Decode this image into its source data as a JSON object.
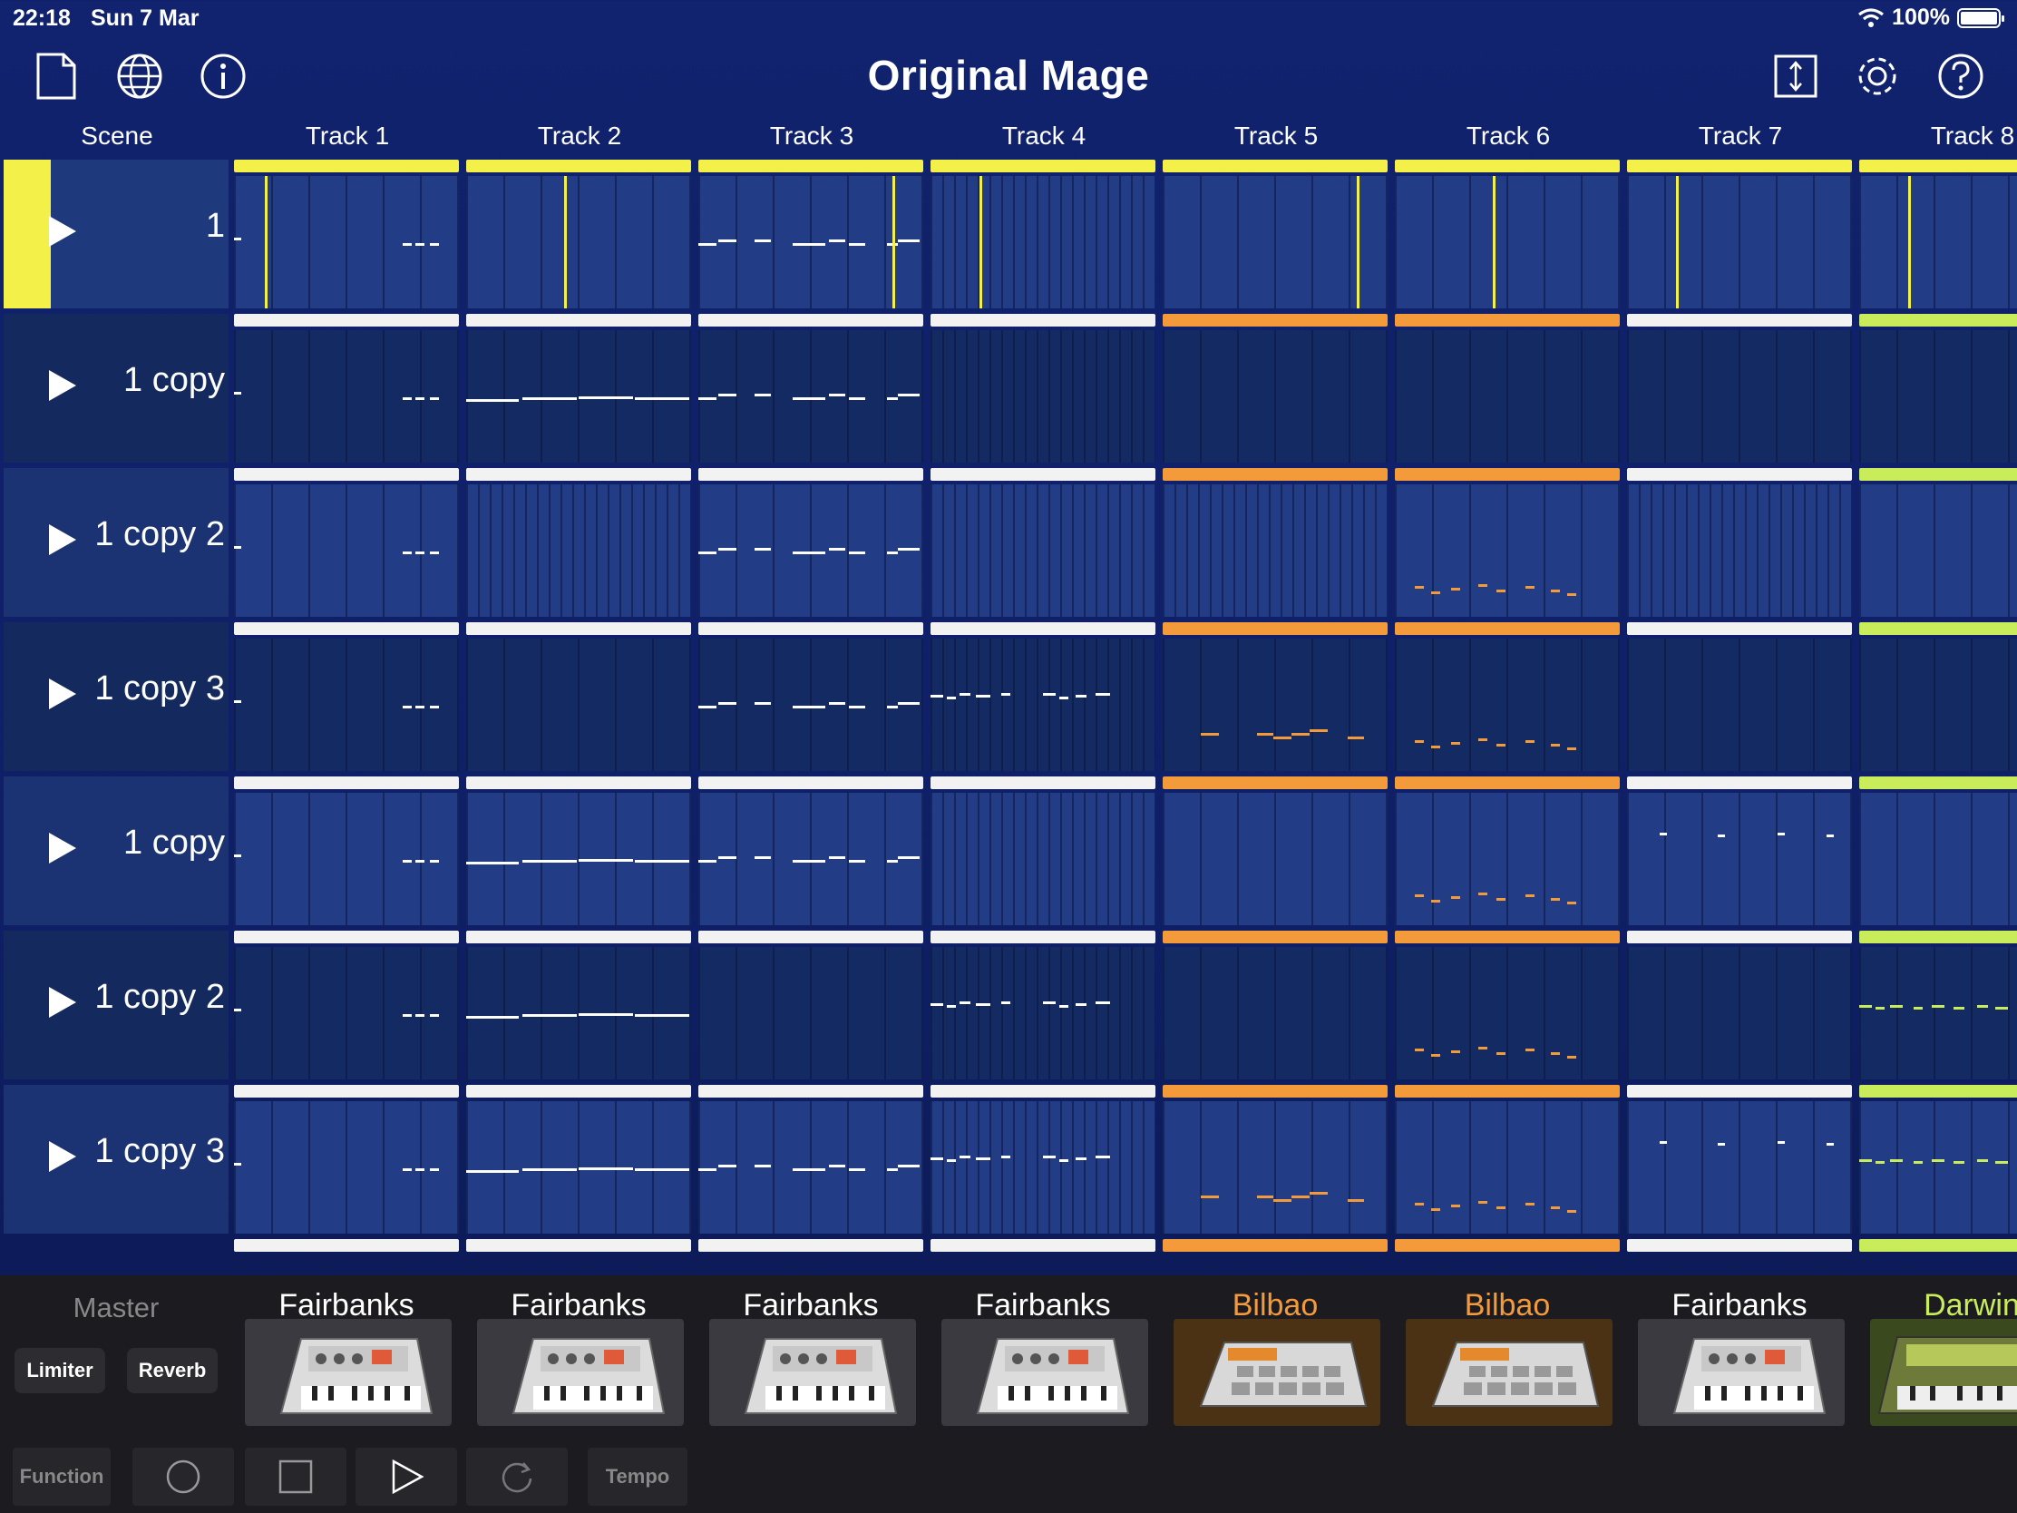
{
  "status": {
    "time": "22:18",
    "date": "Sun 7 Mar",
    "battery": "100%"
  },
  "app": {
    "title": "Original Mage"
  },
  "toolbar_icons": [
    "new-document-icon",
    "globe-icon",
    "info-icon",
    "resize-vertical-icon",
    "gear-icon",
    "help-icon"
  ],
  "columns": {
    "scene": "Scene",
    "tracks": [
      "Track 1",
      "Track 2",
      "Track 3",
      "Track 4",
      "Track 5",
      "Track 6",
      "Track 7",
      "Track 8"
    ]
  },
  "scenes": [
    {
      "label": "1",
      "active": true
    },
    {
      "label": "1 copy",
      "active": false
    },
    {
      "label": "1 copy 2",
      "active": false
    },
    {
      "label": "1 copy 3",
      "active": false
    },
    {
      "label": "1 copy",
      "active": false
    },
    {
      "label": "1 copy 2",
      "active": false
    },
    {
      "label": "1 copy 3",
      "active": false
    }
  ],
  "colors": {
    "active_yellow": "#f4f04a",
    "clip_white": "#f2f2f2",
    "clip_orange": "#f39a3a",
    "clip_lime": "#c8ec5a",
    "background": "#11226e"
  },
  "master": {
    "label": "Master",
    "limiter": "Limiter",
    "reverb": "Reverb"
  },
  "instruments": [
    {
      "name": "Fairbanks",
      "kind": "fairbanks"
    },
    {
      "name": "Fairbanks",
      "kind": "fairbanks"
    },
    {
      "name": "Fairbanks",
      "kind": "fairbanks"
    },
    {
      "name": "Fairbanks",
      "kind": "fairbanks"
    },
    {
      "name": "Bilbao",
      "kind": "bilbao"
    },
    {
      "name": "Bilbao",
      "kind": "bilbao"
    },
    {
      "name": "Fairbanks",
      "kind": "fairbanks"
    },
    {
      "name": "Darwin",
      "kind": "darwin"
    }
  ],
  "transport": {
    "function": "Function",
    "tempo": "Tempo"
  }
}
